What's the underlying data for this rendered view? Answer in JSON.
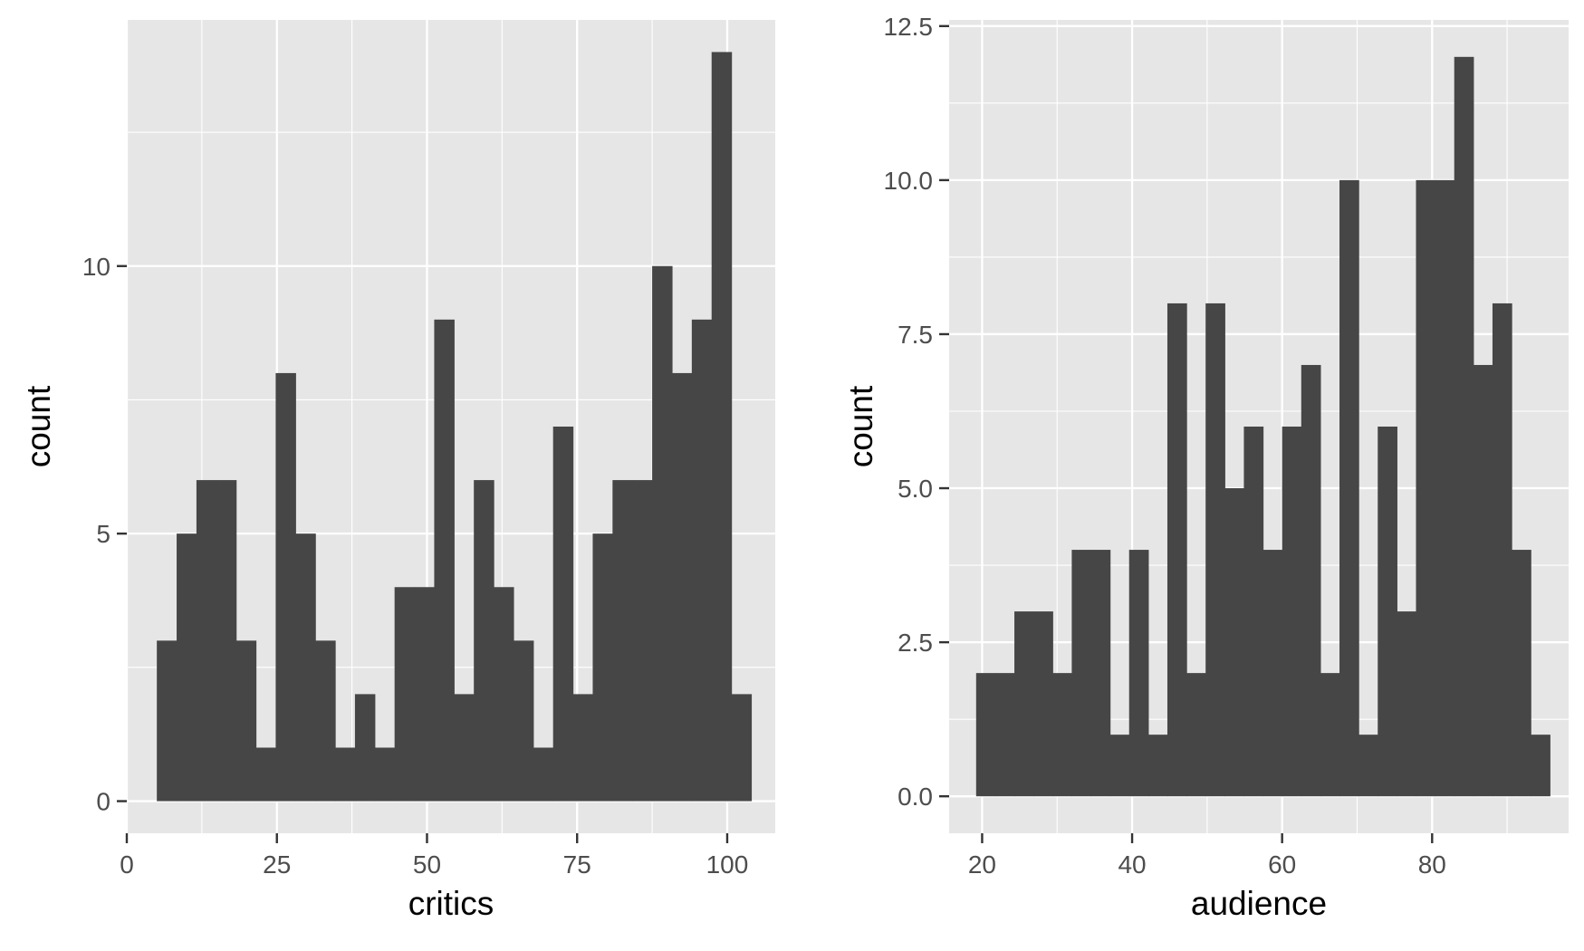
{
  "chart_data": [
    {
      "type": "histogram",
      "panel": "left",
      "xlabel": "critics",
      "ylabel": "count",
      "xlim": [
        0,
        108
      ],
      "ylim": [
        -0.6,
        14.6
      ],
      "x_ticks": [
        0,
        25,
        50,
        75,
        100
      ],
      "x_tick_labels": [
        "0",
        "25",
        "50",
        "75",
        "100"
      ],
      "y_ticks": [
        0,
        5,
        10
      ],
      "y_tick_labels": [
        "0",
        "5",
        "10"
      ],
      "bin_start": 5,
      "bin_width": 3.3,
      "values": [
        3,
        5,
        6,
        6,
        3,
        1,
        8,
        5,
        3,
        1,
        2,
        1,
        4,
        4,
        9,
        2,
        6,
        4,
        3,
        1,
        7,
        2,
        5,
        6,
        6,
        10,
        8,
        9,
        14,
        2
      ],
      "grid": true,
      "legend": "none"
    },
    {
      "type": "histogram",
      "panel": "right",
      "xlabel": "audience",
      "ylabel": "count",
      "xlim": [
        15.6,
        98.2
      ],
      "ylim": [
        -0.6,
        12.6
      ],
      "x_ticks": [
        20,
        40,
        60,
        80
      ],
      "x_tick_labels": [
        "20",
        "40",
        "60",
        "80"
      ],
      "y_ticks": [
        0,
        2.5,
        5,
        7.5,
        10,
        12.5
      ],
      "y_tick_labels": [
        "0.0",
        "2.5",
        "5.0",
        "7.5",
        "10.0",
        "12.5"
      ],
      "bin_start": 19.2,
      "bin_width": 2.55,
      "values": [
        2,
        2,
        3,
        3,
        2,
        4,
        4,
        1,
        4,
        1,
        8,
        2,
        8,
        5,
        6,
        4,
        6,
        7,
        2,
        10,
        1,
        6,
        3,
        10,
        10,
        12,
        7,
        8,
        4,
        1
      ],
      "grid": true,
      "legend": "none"
    }
  ]
}
